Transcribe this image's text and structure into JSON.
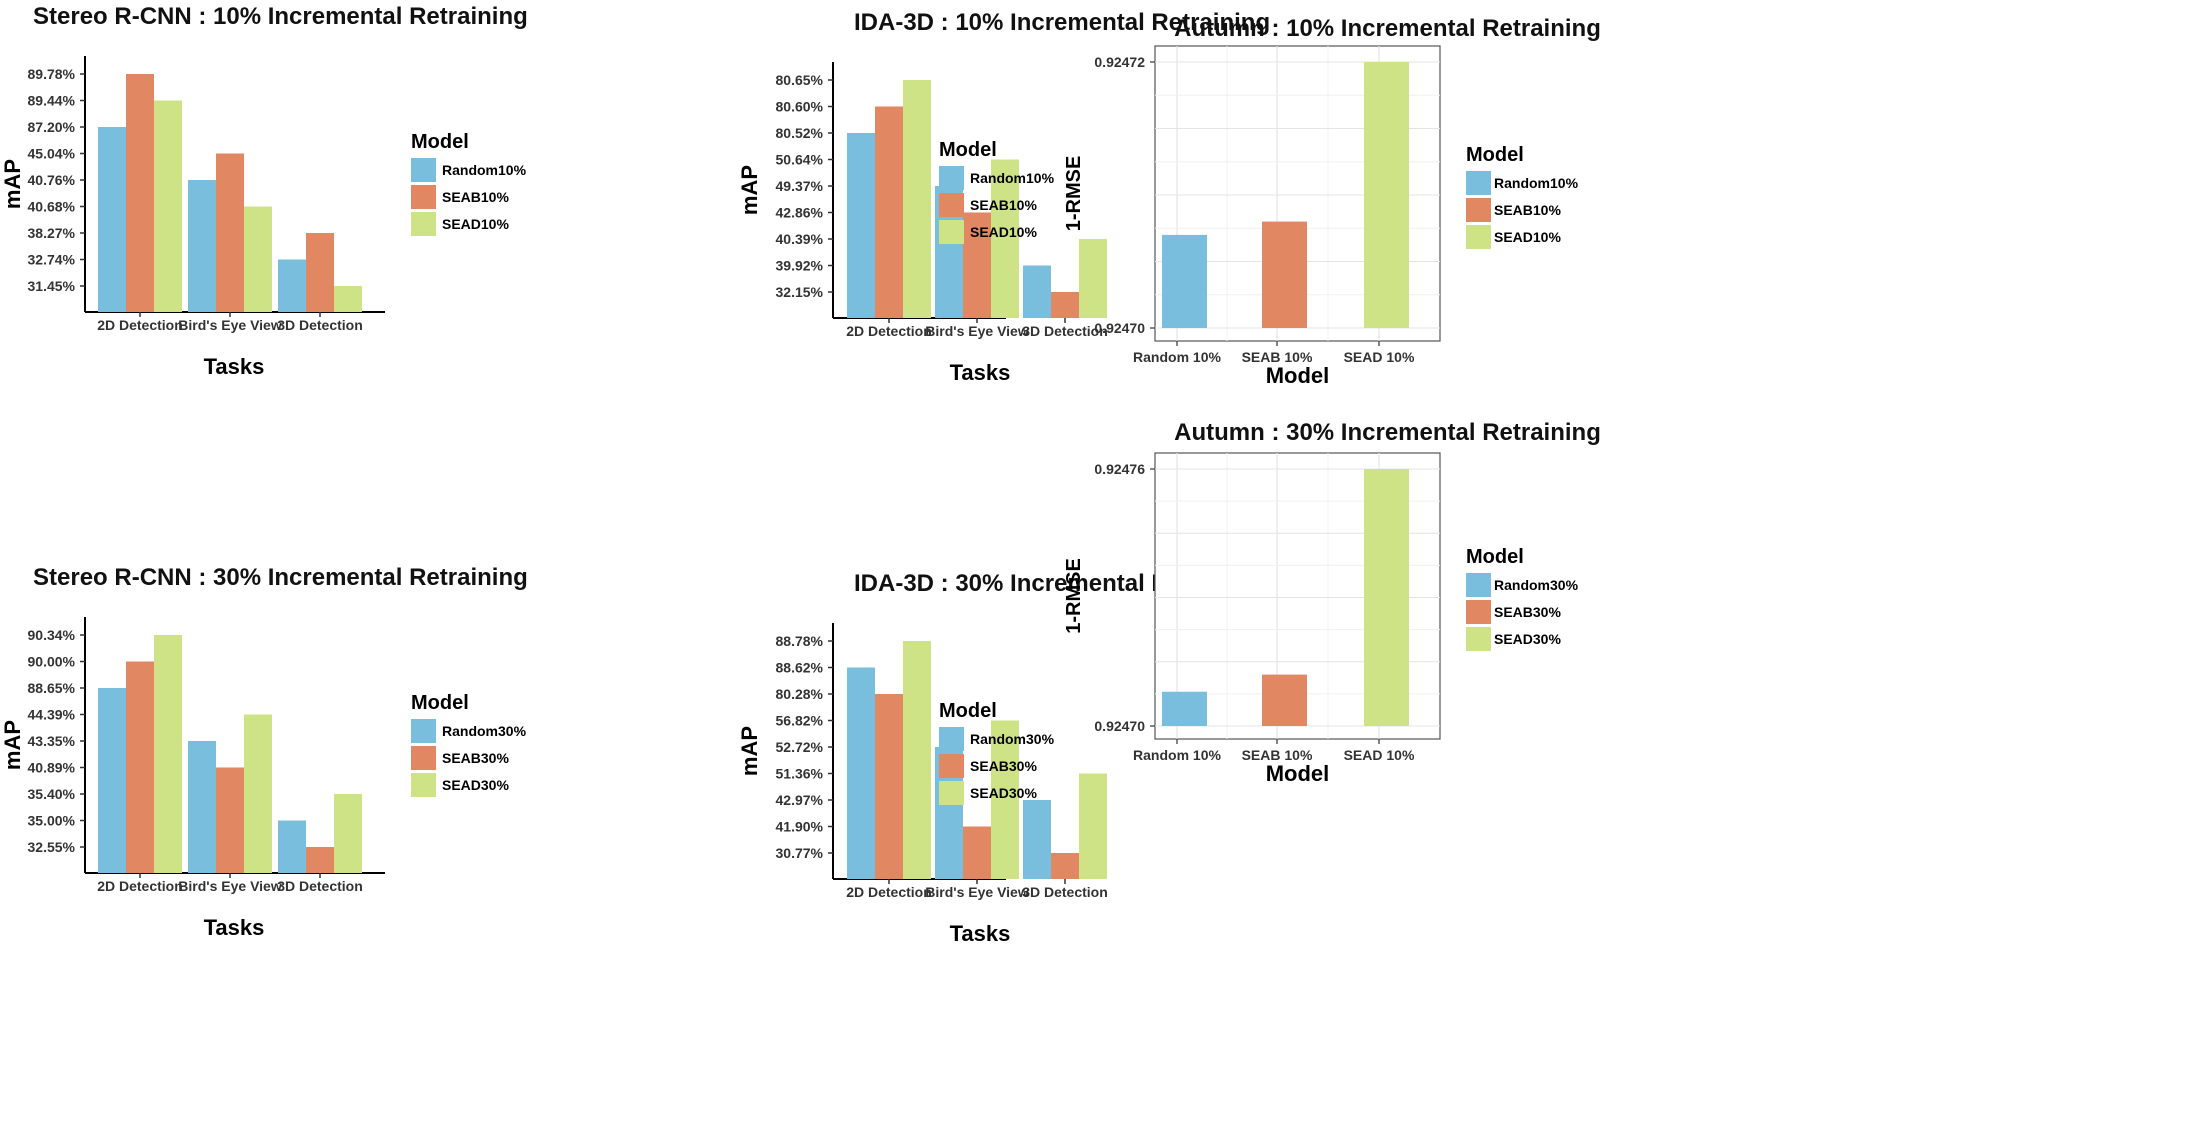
{
  "colors": {
    "random": "#79bedc",
    "seab": "#e18762",
    "sead": "#cde385"
  },
  "chart_data": [
    {
      "type": "bar",
      "title": "Stereo R-CNN : 10% Incremental Retraining",
      "xlabel": "Tasks",
      "ylabel": "mAP",
      "categories": [
        "2D Detection",
        "Bird's Eye View",
        "3D Detection"
      ],
      "y_ticks": [
        "31.45%",
        "32.74%",
        "38.27%",
        "40.68%",
        "40.76%",
        "45.04%",
        "87.20%",
        "89.44%",
        "89.78%"
      ],
      "legend_title": "Model",
      "series": [
        {
          "name": "Random10%",
          "values": [
            "87.20%",
            "40.76%",
            "32.74%"
          ]
        },
        {
          "name": "SEAB10%",
          "values": [
            "89.78%",
            "45.04%",
            "38.27%"
          ]
        },
        {
          "name": "SEAD10%",
          "values": [
            "89.44%",
            "40.68%",
            "31.45%"
          ]
        }
      ]
    },
    {
      "type": "bar",
      "title": "IDA-3D : 10% Incremental Retraining",
      "xlabel": "Tasks",
      "ylabel": "mAP",
      "categories": [
        "2D Detection",
        "Bird's Eye View",
        "3D Detection"
      ],
      "y_ticks": [
        "32.15%",
        "39.92%",
        "40.39%",
        "42.86%",
        "49.37%",
        "50.64%",
        "80.52%",
        "80.60%",
        "80.65%"
      ],
      "legend_title": "Model",
      "series": [
        {
          "name": "Random10%",
          "values": [
            "80.52%",
            "49.37%",
            "39.92%"
          ]
        },
        {
          "name": "SEAB10%",
          "values": [
            "80.60%",
            "42.86%",
            "32.15%"
          ]
        },
        {
          "name": "SEAD10%",
          "values": [
            "80.65%",
            "50.64%",
            "40.39%"
          ]
        }
      ]
    },
    {
      "type": "bar",
      "title": "Autumn : 10% Incremental Retraining",
      "xlabel": "Model",
      "ylabel": "1-RMSE",
      "categories": [
        "Random 10%",
        "SEAB 10%",
        "SEAD 10%"
      ],
      "y_ticks": [
        "0.92470",
        "0.92472"
      ],
      "ylim": [
        0.9247,
        0.92472
      ],
      "legend_title": "Model",
      "series": [
        {
          "name": "Random10%",
          "values": [
            0.924707,
            null,
            null
          ]
        },
        {
          "name": "SEAB10%",
          "values": [
            null,
            0.924708,
            null
          ]
        },
        {
          "name": "SEAD10%",
          "values": [
            null,
            null,
            0.92472
          ]
        }
      ]
    },
    {
      "type": "bar",
      "title": "Stereo R-CNN : 30% Incremental Retraining",
      "xlabel": "Tasks",
      "ylabel": "mAP",
      "categories": [
        "2D Detection",
        "Bird's Eye View",
        "3D Detection"
      ],
      "y_ticks": [
        "32.55%",
        "35.00%",
        "35.40%",
        "40.89%",
        "43.35%",
        "44.39%",
        "88.65%",
        "90.00%",
        "90.34%"
      ],
      "legend_title": "Model",
      "series": [
        {
          "name": "Random30%",
          "values": [
            "88.65%",
            "43.35%",
            "35.00%"
          ]
        },
        {
          "name": "SEAB30%",
          "values": [
            "90.00%",
            "40.89%",
            "32.55%"
          ]
        },
        {
          "name": "SEAD30%",
          "values": [
            "90.34%",
            "44.39%",
            "35.40%"
          ]
        }
      ]
    },
    {
      "type": "bar",
      "title": "IDA-3D : 30% Incremental Retraining",
      "xlabel": "Tasks",
      "ylabel": "mAP",
      "categories": [
        "2D Detection",
        "Bird's Eye View",
        "3D Detection"
      ],
      "y_ticks": [
        "30.77%",
        "41.90%",
        "42.97%",
        "51.36%",
        "52.72%",
        "56.82%",
        "80.28%",
        "88.62%",
        "88.78%"
      ],
      "legend_title": "Model",
      "series": [
        {
          "name": "Random30%",
          "values": [
            "88.62%",
            "52.72%",
            "42.97%"
          ]
        },
        {
          "name": "SEAB30%",
          "values": [
            "80.28%",
            "41.90%",
            "30.77%"
          ]
        },
        {
          "name": "SEAD30%",
          "values": [
            "88.78%",
            "56.82%",
            "51.36%"
          ]
        }
      ]
    },
    {
      "type": "bar",
      "title": "Autumn : 30% Incremental Retraining",
      "xlabel": "Model",
      "ylabel": "1-RMSE",
      "categories": [
        "Random 10%",
        "SEAB 10%",
        "SEAD 10%"
      ],
      "y_ticks": [
        "0.92470",
        "0.92476"
      ],
      "ylim": [
        0.9247,
        0.92476
      ],
      "legend_title": "Model",
      "series": [
        {
          "name": "Random30%",
          "values": [
            0.924708,
            null,
            null
          ]
        },
        {
          "name": "SEAB30%",
          "values": [
            null,
            0.924712,
            null
          ]
        },
        {
          "name": "SEAD30%",
          "values": [
            null,
            null,
            0.92476
          ]
        }
      ]
    }
  ]
}
